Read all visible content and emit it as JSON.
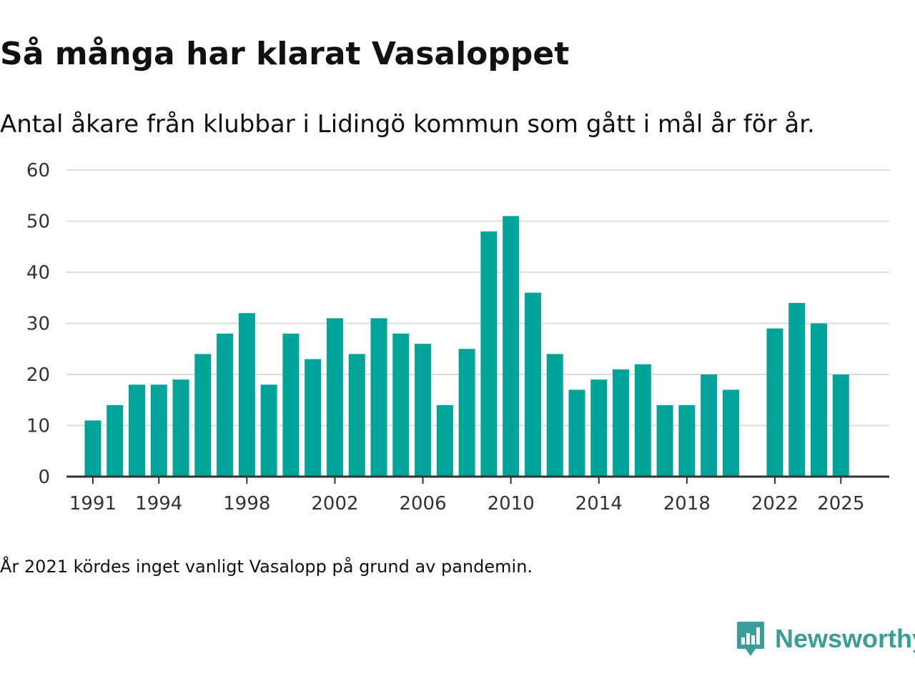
{
  "header": {
    "title": "Så många har klarat Vasaloppet",
    "subtitle": "Antal åkare från klubbar i Lidingö kommun som gått i mål år för år."
  },
  "footer": {
    "note": "År 2021 kördes inget vanligt Vasalopp på grund av pandemin.",
    "brand_name": "Newsworthy",
    "brand_icon": "chart-bubble-icon"
  },
  "colors": {
    "bar": "#00a499",
    "grid": "#dddddd",
    "axis": "#333333",
    "brand": "#3a9e98"
  },
  "chart_data": {
    "type": "bar",
    "title": "Så många har klarat Vasaloppet",
    "subtitle": "Antal åkare från klubbar i Lidingö kommun som gått i mål år för år.",
    "xlabel": "",
    "ylabel": "",
    "ylim": [
      0,
      60
    ],
    "yticks": [
      0,
      10,
      20,
      30,
      40,
      50,
      60
    ],
    "xlim": [
      1989.8,
      2027.2
    ],
    "xticks": [
      1991,
      1994,
      1998,
      2002,
      2006,
      2010,
      2014,
      2018,
      2022,
      2025
    ],
    "grid": true,
    "x": [
      1991,
      1992,
      1993,
      1994,
      1995,
      1996,
      1997,
      1998,
      1999,
      2000,
      2001,
      2002,
      2003,
      2004,
      2005,
      2006,
      2007,
      2008,
      2009,
      2010,
      2011,
      2012,
      2013,
      2014,
      2015,
      2016,
      2017,
      2018,
      2019,
      2020,
      2022,
      2023,
      2024,
      2025
    ],
    "values": [
      11,
      14,
      18,
      18,
      19,
      24,
      28,
      32,
      18,
      28,
      23,
      31,
      24,
      31,
      28,
      26,
      14,
      25,
      48,
      51,
      36,
      24,
      17,
      19,
      21,
      22,
      14,
      14,
      20,
      17,
      29,
      34,
      30,
      20
    ]
  }
}
